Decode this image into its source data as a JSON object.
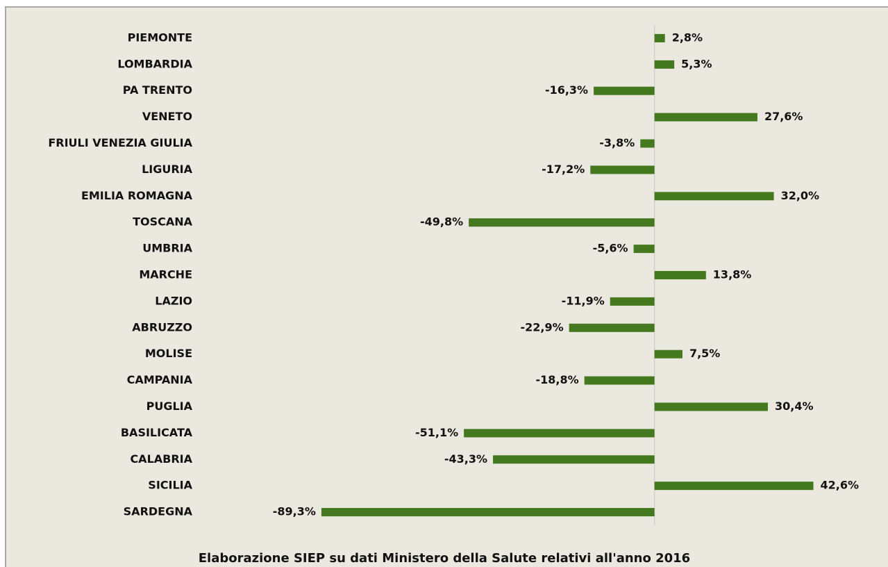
{
  "chart_data": {
    "type": "bar",
    "orientation": "horizontal",
    "categories": [
      "PIEMONTE",
      "LOMBARDIA",
      "PA TRENTO",
      "VENETO",
      "FRIULI VENEZIA GIULIA",
      "LIGURIA",
      "EMILIA ROMAGNA",
      "TOSCANA",
      "UMBRIA",
      "MARCHE",
      "LAZIO",
      "ABRUZZO",
      "MOLISE",
      "CAMPANIA",
      "PUGLIA",
      "BASILICATA",
      "CALABRIA",
      "SICILIA",
      "SARDEGNA"
    ],
    "values": [
      2.8,
      5.3,
      -16.3,
      27.6,
      -3.8,
      -17.2,
      32.0,
      -49.8,
      -5.6,
      13.8,
      -11.9,
      -22.9,
      7.5,
      -18.8,
      30.4,
      -51.1,
      -43.3,
      42.6,
      -89.3
    ],
    "value_labels": [
      "2,8%",
      "5,3%",
      "-16,3%",
      "27,6%",
      "-3,8%",
      "-17,2%",
      "32,0%",
      "-49,8%",
      "-5,6%",
      "13,8%",
      "-11,9%",
      "-22,9%",
      "7,5%",
      "-18,8%",
      "30,4%",
      "-51,1%",
      "-43,3%",
      "42,6%",
      "-89,3%"
    ],
    "color": "#44791f",
    "xlim": [
      -120,
      60
    ],
    "caption": "Elaborazione SIEP su dati Ministero della Salute relativi all'anno 2016"
  }
}
